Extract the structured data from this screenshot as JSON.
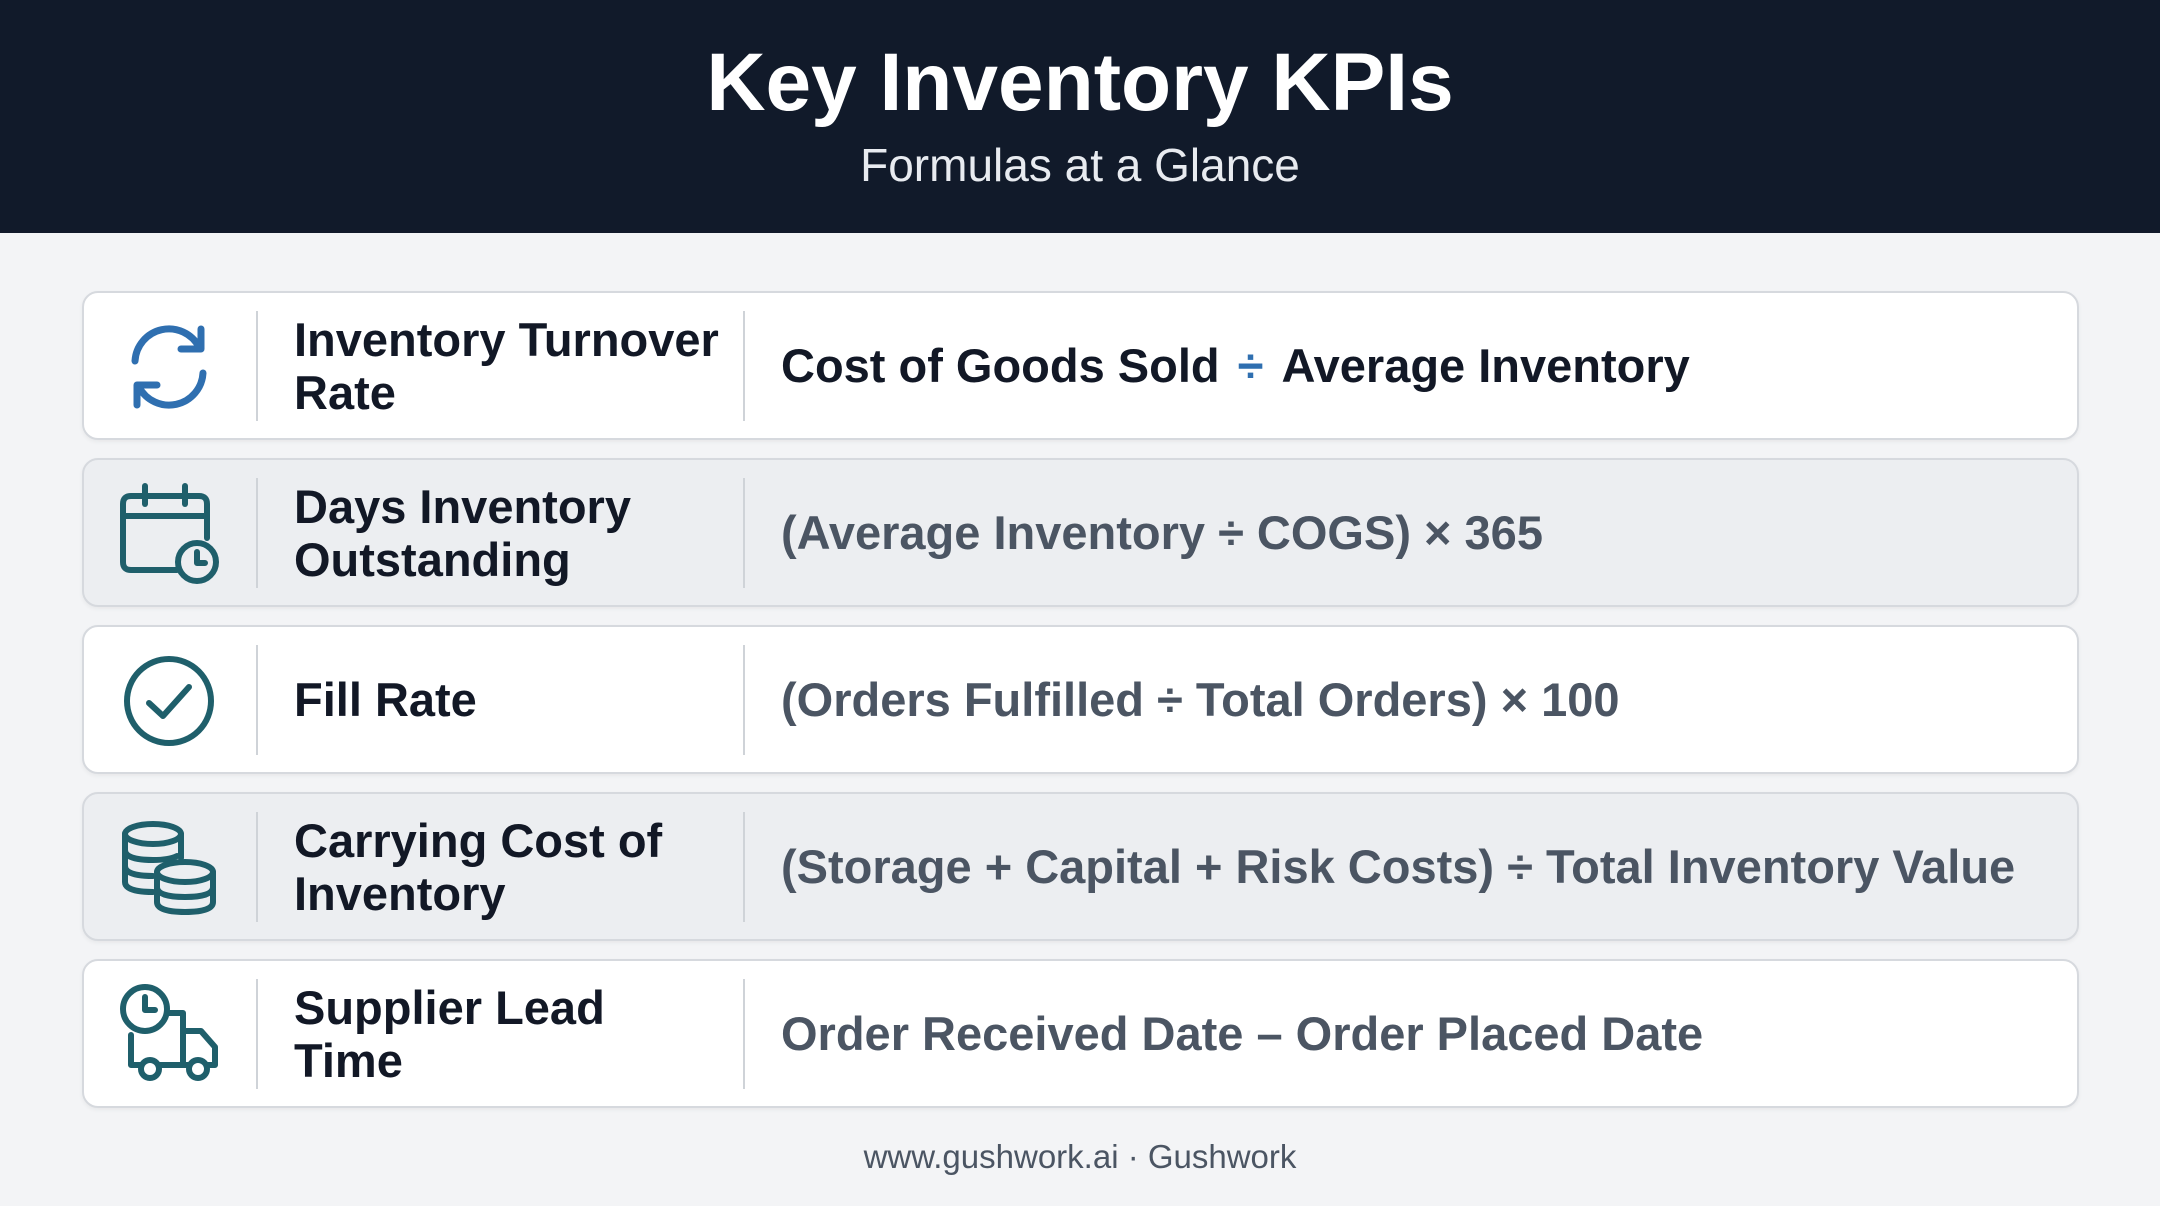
{
  "header": {
    "title": "Key Inventory KPIs",
    "subtitle": "Formulas at a Glance"
  },
  "kpis": [
    {
      "icon": "refresh-cycle-icon",
      "name": "Inventory Turnover Rate",
      "formula_left": "Cost of Goods Sold",
      "formula_op": "÷",
      "formula_right": "Average Inventory"
    },
    {
      "icon": "calendar-clock-icon",
      "name": "Days Inventory Outstanding",
      "formula": "(Average Inventory ÷ COGS) × 365"
    },
    {
      "icon": "check-circle-icon",
      "name": "Fill Rate",
      "formula": "(Orders Fulfilled ÷ Total Orders) × 100"
    },
    {
      "icon": "coin-stack-icon",
      "name": "Carrying Cost of Inventory",
      "formula": "(Storage + Capital + Risk Costs) ÷ Total Inventory Value"
    },
    {
      "icon": "truck-clock-icon",
      "name": "Supplier Lead Time",
      "formula": "Order Received Date – Order Placed Date"
    }
  ],
  "footer": {
    "text": "www.gushwork.ai · Gushwork"
  },
  "colors": {
    "header_bg": "#111a2a",
    "icon_blue": "#2f6fb0",
    "icon_teal": "#1f5f6b",
    "text_dark": "#121826",
    "text_gray": "#4b5563"
  }
}
